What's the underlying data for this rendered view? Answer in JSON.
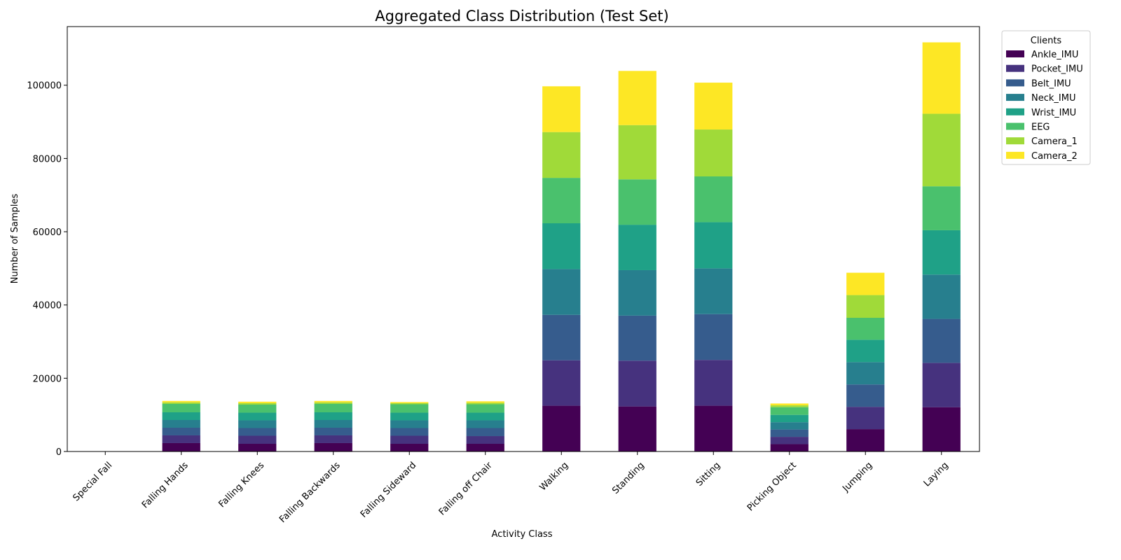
{
  "chart_data": {
    "type": "bar",
    "stacked": true,
    "title": "Aggregated Class Distribution (Test Set)",
    "xlabel": "Activity Class",
    "ylabel": "Number of Samples",
    "ylim": [
      0,
      116000
    ],
    "yticks": [
      0,
      20000,
      40000,
      60000,
      80000,
      100000
    ],
    "grid": false,
    "legend": {
      "title": "Clients",
      "placement": "outside-top-right"
    },
    "categories": [
      "Special Fall",
      "Falling Hands",
      "Falling Knees",
      "Falling Backwards",
      "Falling Sideward",
      "Falling off Chair",
      "Walking",
      "Standing",
      "Sitting",
      "Picking Object",
      "Jumping",
      "Laying"
    ],
    "series": [
      {
        "name": "Ankle_IMU",
        "color": "#440154",
        "values": [
          0,
          2300,
          2100,
          2300,
          2100,
          2100,
          12500,
          12300,
          12500,
          2000,
          6100,
          12100
        ]
      },
      {
        "name": "Pocket_IMU",
        "color": "#46327e",
        "values": [
          0,
          2100,
          2200,
          2100,
          2200,
          2100,
          12400,
          12500,
          12500,
          2000,
          6100,
          12100
        ]
      },
      {
        "name": "Belt_IMU",
        "color": "#365c8d",
        "values": [
          0,
          2100,
          2100,
          2100,
          2100,
          2200,
          12400,
          12300,
          12500,
          2000,
          6100,
          12000
        ]
      },
      {
        "name": "Neck_IMU",
        "color": "#277f8e",
        "values": [
          0,
          2100,
          2100,
          2100,
          2100,
          2100,
          12500,
          12400,
          12500,
          2000,
          6100,
          12100
        ]
      },
      {
        "name": "Wrist_IMU",
        "color": "#1fa187",
        "values": [
          0,
          2100,
          2100,
          2100,
          2100,
          2100,
          12500,
          12400,
          12600,
          2000,
          6100,
          12100
        ]
      },
      {
        "name": "EEG",
        "color": "#4ac16d",
        "values": [
          0,
          2300,
          2200,
          2300,
          2300,
          2300,
          12400,
          12400,
          12500,
          2100,
          6000,
          12000
        ]
      },
      {
        "name": "Camera_1",
        "color": "#a0da39",
        "values": [
          0,
          400,
          400,
          400,
          300,
          400,
          12500,
          14800,
          12800,
          500,
          6200,
          19800
        ]
      },
      {
        "name": "Camera_2",
        "color": "#fde725",
        "values": [
          0,
          400,
          400,
          400,
          300,
          400,
          12500,
          14800,
          12800,
          500,
          6100,
          19500
        ]
      }
    ]
  }
}
